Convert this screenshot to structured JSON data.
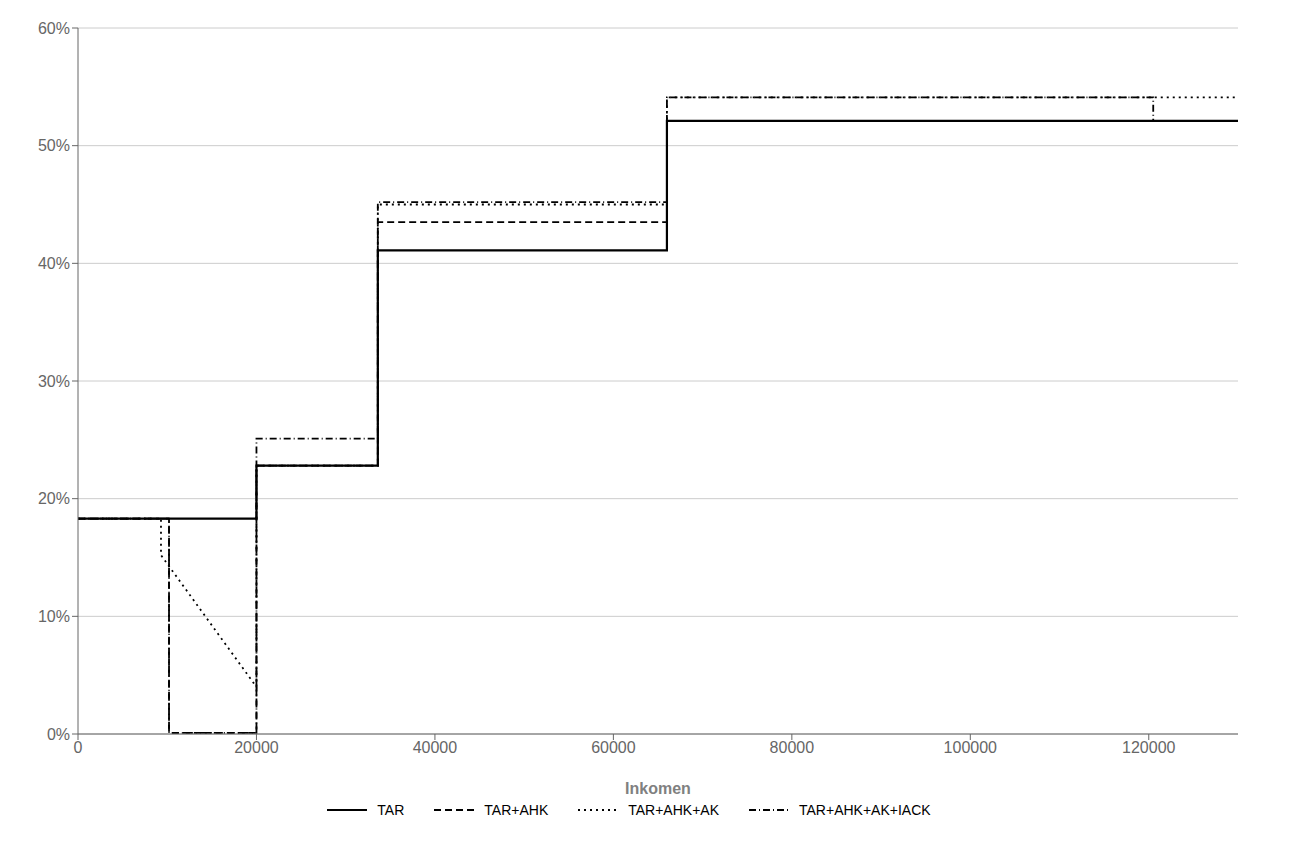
{
  "chart_data": {
    "type": "line",
    "xlabel": "Inkomen",
    "xlim": [
      0,
      130000
    ],
    "ylim": [
      0.0,
      0.6
    ],
    "xticks": [
      0,
      20000,
      40000,
      60000,
      80000,
      100000,
      120000
    ],
    "yticks": [
      {
        "value": 0.0,
        "label": "0%"
      },
      {
        "value": 0.1,
        "label": "10%"
      },
      {
        "value": 0.2,
        "label": "20%"
      },
      {
        "value": 0.3,
        "label": "30%"
      },
      {
        "value": 0.4,
        "label": "40%"
      },
      {
        "value": 0.5,
        "label": "50%"
      },
      {
        "value": 0.6,
        "label": "60%"
      }
    ],
    "grid": "y",
    "legend": "bottom",
    "series": [
      {
        "name": "TAR",
        "color": "#000000",
        "line_style": "solid",
        "x": [
          0,
          20000,
          20000,
          33600,
          33600,
          66000,
          66000,
          130000
        ],
        "values": [
          0.183,
          0.183,
          0.228,
          0.228,
          0.411,
          0.411,
          0.521,
          0.521
        ]
      },
      {
        "name": "TAR+AHK",
        "color": "#000000",
        "line_style": "dashed",
        "x": [
          0,
          10200,
          10200,
          20000,
          20000,
          33600,
          33600,
          66000,
          66000,
          130000
        ],
        "values": [
          0.183,
          0.183,
          0.001,
          0.001,
          0.228,
          0.228,
          0.435,
          0.435,
          0.521,
          0.521
        ]
      },
      {
        "name": "TAR+AHK+AK",
        "color": "#000000",
        "line_style": "dotted",
        "x": [
          0,
          9300,
          9300,
          20000,
          20000,
          33600,
          33600,
          66000,
          66000,
          130000
        ],
        "values": [
          0.183,
          0.183,
          0.152,
          0.04,
          0.228,
          0.228,
          0.45,
          0.45,
          0.541,
          0.541
        ]
      },
      {
        "name": "TAR+AHK+AK+IACK",
        "color": "#000000",
        "line_style": "dashdot",
        "x": [
          0,
          10200,
          10200,
          20000,
          20000,
          33600,
          33600,
          66000,
          66000,
          120500,
          120500,
          130000
        ],
        "values": [
          0.183,
          0.183,
          0.001,
          0.001,
          0.251,
          0.251,
          0.452,
          0.452,
          0.541,
          0.541,
          0.521,
          0.521
        ]
      }
    ]
  }
}
